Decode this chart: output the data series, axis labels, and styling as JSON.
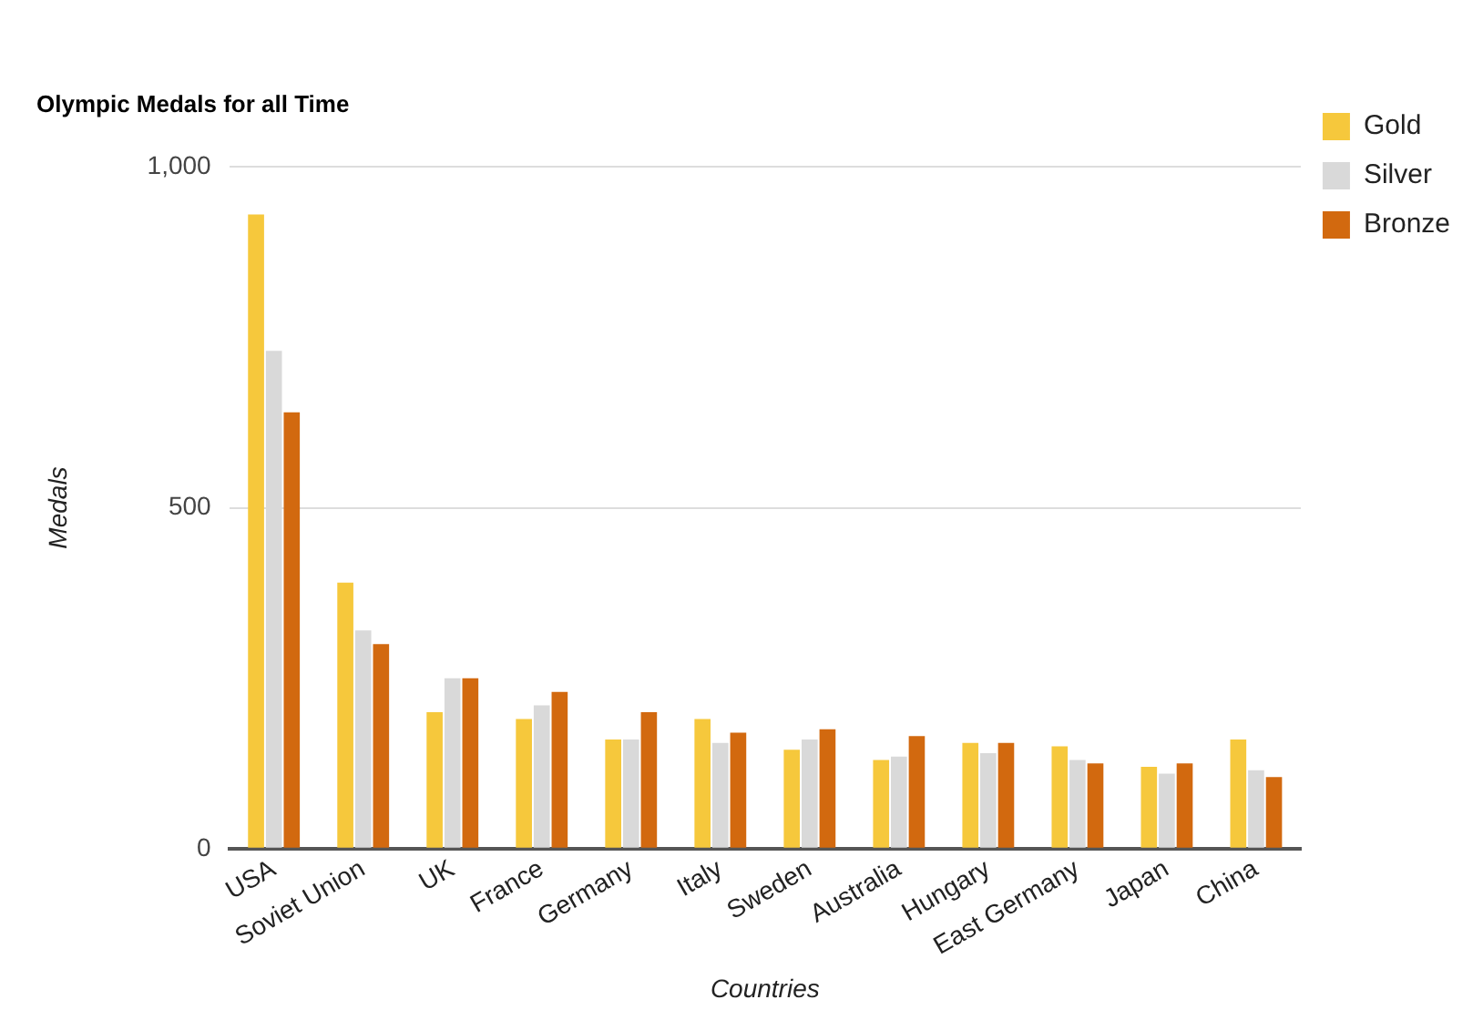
{
  "chart_data": {
    "type": "bar",
    "title": "Olympic Medals for all Time",
    "xlabel": "Countries",
    "ylabel": "Medals",
    "categories": [
      "USA",
      "Soviet Union",
      "UK",
      "France",
      "Germany",
      "Italy",
      "Sweden",
      "Australia",
      "Hungary",
      "East Germany",
      "Japan",
      "China"
    ],
    "series": [
      {
        "name": "Gold",
        "color": "#f6c83c",
        "values": [
          930,
          390,
          200,
          190,
          160,
          190,
          145,
          130,
          155,
          150,
          120,
          160
        ]
      },
      {
        "name": "Silver",
        "color": "#d9d9d9",
        "values": [
          730,
          320,
          250,
          210,
          160,
          155,
          160,
          135,
          140,
          130,
          110,
          115
        ]
      },
      {
        "name": "Bronze",
        "color": "#d2690f",
        "values": [
          640,
          300,
          250,
          230,
          200,
          170,
          175,
          165,
          155,
          125,
          125,
          105
        ]
      }
    ],
    "ylim": [
      0,
      1000
    ],
    "yticks": [
      0,
      500,
      {
        "value": 1000,
        "label": "1,000"
      }
    ],
    "grid": "y",
    "legend": "top right"
  }
}
